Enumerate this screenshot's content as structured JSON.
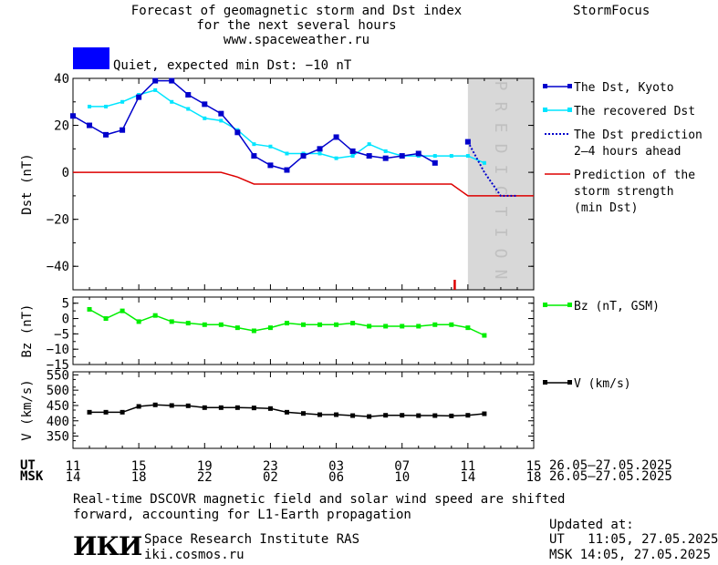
{
  "header": {
    "title_line1": "Forecast of geomagnetic storm and Dst index",
    "title_line2": "for the next several hours",
    "title_line3": "www.spaceweather.ru",
    "brand": "StormFocus",
    "status_text": "Quiet, expected min Dst: −10 nT",
    "status_color": "#0000ff"
  },
  "colors": {
    "dst_kyoto": "#0000cc",
    "dst_recovered": "#00e5ff",
    "dst_prediction": "#0000cc",
    "storm_strength": "#dd0000",
    "bz": "#00ee00",
    "v": "#000000",
    "prediction_zone": "#d8d8d8"
  },
  "time_axis": {
    "ut_label": "UT",
    "msk_label": "MSK",
    "ut_ticks": [
      "11",
      "15",
      "19",
      "23",
      "03",
      "07",
      "11",
      "15"
    ],
    "msk_ticks": [
      "14",
      "18",
      "22",
      "02",
      "06",
      "10",
      "14",
      "18"
    ],
    "ut_range": "26.05‒27.05.2025",
    "msk_range": "26.05‒27.05.2025"
  },
  "footer": {
    "note_line1": "Real‑time DSCOVR magnetic field and solar wind speed are shifted",
    "note_line2": "forward, accounting for L1‑Earth propagation",
    "institute_name": "Space Research Institute RAS",
    "institute_url": "iki.cosmos.ru",
    "logo_text": "ИКИ",
    "updated_label": "Updated at:",
    "updated_ut": "UT   11:05, 27.05.2025",
    "updated_msk": "MSK 14:05, 27.05.2025"
  },
  "chart_data": [
    {
      "type": "line",
      "panel": "dst",
      "ylabel": "Dst (nT)",
      "ylim": [
        -50,
        40
      ],
      "yticks": [
        40,
        20,
        0,
        -20,
        -40
      ],
      "xlim_hours": [
        0,
        28
      ],
      "prediction_label": "PREDICTION",
      "prediction_start_hour": 24,
      "storm_marker_hour": 23.2,
      "series": [
        {
          "name": "The Dst, Kyoto",
          "x": [
            0,
            1,
            2,
            3,
            4,
            5,
            6,
            7,
            8,
            9,
            10,
            11,
            12,
            13,
            14,
            15,
            16,
            17,
            18,
            19,
            20,
            21,
            22,
            23,
            24
          ],
          "y": [
            24,
            20,
            16,
            18,
            32,
            39,
            39,
            33,
            29,
            25,
            17,
            7,
            3,
            1,
            7,
            10,
            15,
            9,
            7,
            6,
            7,
            8,
            4,
            null,
            13
          ]
        },
        {
          "name": "The recovered Dst",
          "x": [
            1,
            2,
            3,
            4,
            5,
            6,
            7,
            8,
            9,
            10,
            11,
            12,
            13,
            14,
            15,
            16,
            17,
            18,
            19,
            20,
            21,
            22,
            23,
            24,
            25
          ],
          "y": [
            28,
            28,
            30,
            33,
            35,
            30,
            27,
            23,
            22,
            18,
            12,
            11,
            8,
            8,
            8,
            6,
            7,
            12,
            9,
            7,
            7,
            7,
            7,
            7,
            4
          ]
        },
        {
          "name": "The Dst prediction\n2‒4 hours ahead",
          "x": [
            24,
            25,
            26,
            27
          ],
          "y": [
            13,
            0,
            -10,
            -10
          ]
        },
        {
          "name": "Prediction of the\nstorm strength\n(min Dst)",
          "x": [
            0,
            9,
            10,
            11,
            23,
            24,
            28
          ],
          "y": [
            0,
            0,
            -2,
            -5,
            -5,
            -10,
            -10
          ]
        }
      ]
    },
    {
      "type": "line",
      "panel": "bz",
      "ylabel": "Bz (nT)",
      "ylim": [
        -15,
        7
      ],
      "yticks": [
        5,
        0,
        -5,
        -10,
        -15
      ],
      "series": [
        {
          "name": "Bz (nT, GSM)",
          "x": [
            1,
            2,
            3,
            4,
            5,
            6,
            7,
            8,
            9,
            10,
            11,
            12,
            13,
            14,
            15,
            16,
            17,
            18,
            19,
            20,
            21,
            22,
            23,
            24,
            25
          ],
          "y": [
            3,
            0,
            2.5,
            -1,
            1,
            -1,
            -1.5,
            -2,
            -2,
            -3,
            -4,
            -3,
            -1.5,
            -2,
            -2,
            -2,
            -1.5,
            -2.5,
            -2.5,
            -2.5,
            -2.5,
            -2,
            -2,
            -3,
            -5.5
          ]
        }
      ]
    },
    {
      "type": "line",
      "panel": "v",
      "ylabel": "V (km/s)",
      "ylim": [
        310,
        560
      ],
      "yticks": [
        550,
        500,
        450,
        400,
        350
      ],
      "series": [
        {
          "name": "V (km/s)",
          "x": [
            1,
            2,
            3,
            4,
            5,
            6,
            7,
            8,
            9,
            10,
            11,
            12,
            13,
            14,
            15,
            16,
            17,
            18,
            19,
            20,
            21,
            22,
            23,
            24,
            25
          ],
          "y": [
            428,
            428,
            428,
            447,
            452,
            450,
            449,
            443,
            443,
            443,
            442,
            440,
            428,
            424,
            420,
            420,
            417,
            414,
            418,
            418,
            417,
            417,
            416,
            418,
            423
          ]
        }
      ]
    }
  ]
}
